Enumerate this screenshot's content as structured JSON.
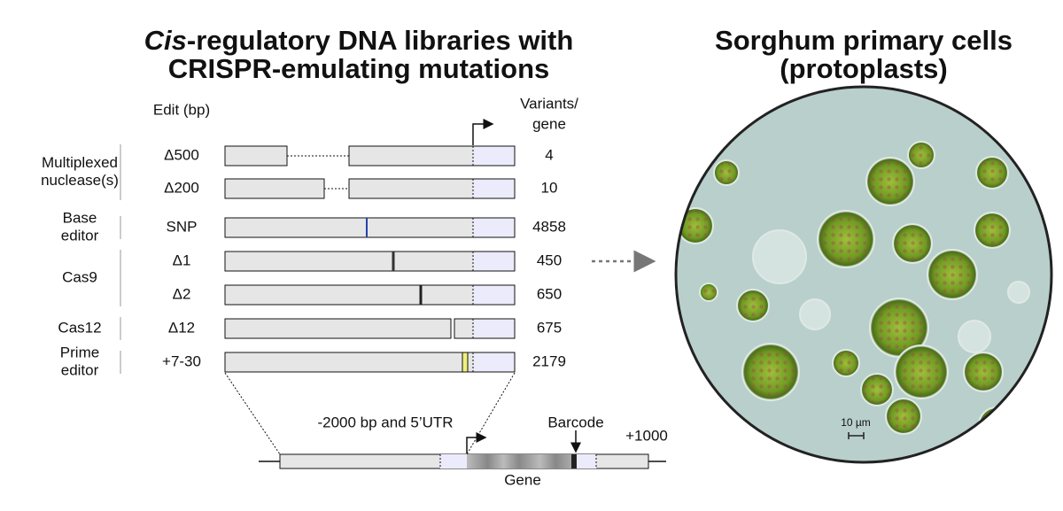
{
  "left_title": {
    "italic": "Cis",
    "line1": "-regulatory DNA libraries with",
    "line2": "CRISPR-emulating mutations"
  },
  "right_title": {
    "line1": "Sorghum primary cells",
    "line2": "(protoplasts)"
  },
  "headers": {
    "edit": "Edit (bp)",
    "variants_line1": "Variants/",
    "variants_line2": "gene"
  },
  "groups": [
    {
      "label": [
        "Multiplexed",
        "nuclease(s)"
      ],
      "rows": [
        {
          "edit": "Δ500",
          "variants": 4
        },
        {
          "edit": "Δ200",
          "variants": 10
        }
      ]
    },
    {
      "label": [
        "Base",
        "editor"
      ],
      "rows": [
        {
          "edit": "SNP",
          "variants": 4858
        }
      ]
    },
    {
      "label": [
        "Cas9"
      ],
      "rows": [
        {
          "edit": "Δ1",
          "variants": 450
        },
        {
          "edit": "Δ2",
          "variants": 650
        }
      ]
    },
    {
      "label": [
        "Cas12"
      ],
      "rows": [
        {
          "edit": "Δ12",
          "variants": 675
        }
      ]
    },
    {
      "label": [
        "Prime",
        "editor"
      ],
      "rows": [
        {
          "edit": "+7-30",
          "variants": 2179
        }
      ]
    }
  ],
  "construct": {
    "region": "-2000 bp and 5’UTR",
    "barcode": "Barcode",
    "end": "+1000",
    "gene": "Gene"
  },
  "scale_bar": "10 µm"
}
